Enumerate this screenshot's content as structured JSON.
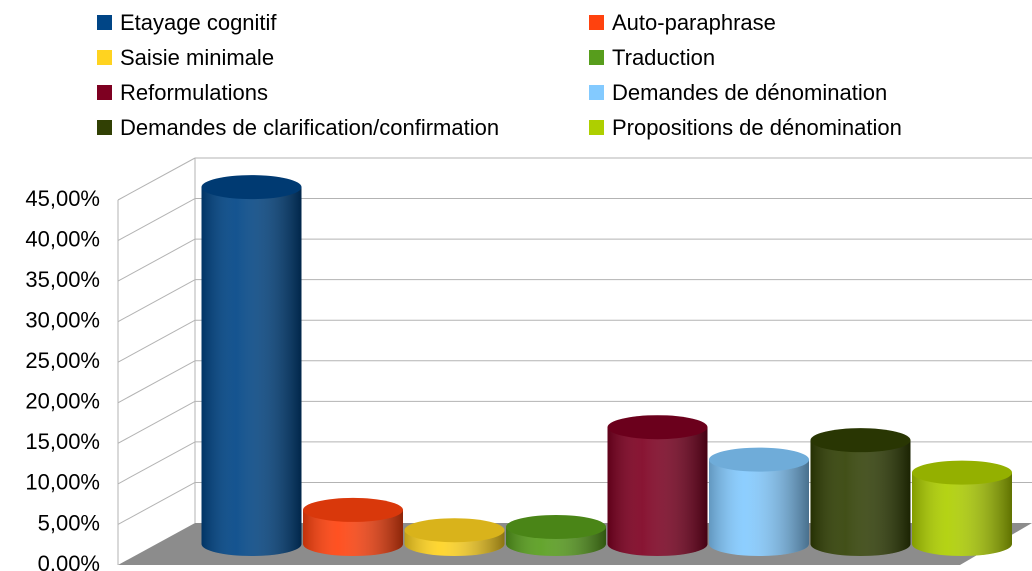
{
  "chart_data": {
    "type": "bar3d",
    "series": [
      {
        "name": "Etayage cognitif",
        "color": "#004586",
        "values": [
          44
        ]
      },
      {
        "name": "Auto-paraphrase",
        "color": "#ff420e",
        "values": [
          4.2
        ]
      },
      {
        "name": "Saisie minimale",
        "color": "#ffd320",
        "values": [
          1.7
        ]
      },
      {
        "name": "Traduction",
        "color": "#579d1c",
        "values": [
          2.1
        ]
      },
      {
        "name": "Reformulations",
        "color": "#7e0021",
        "values": [
          14.4
        ]
      },
      {
        "name": "Demandes de dénomination",
        "color": "#83caff",
        "values": [
          10.4
        ]
      },
      {
        "name": "Demandes de clarification/confirmation",
        "color": "#314004",
        "values": [
          12.8
        ]
      },
      {
        "name": "Propositions de dénomination",
        "color": "#aecf00",
        "values": [
          8.8
        ]
      }
    ],
    "ylim": [
      0,
      45
    ],
    "yticks": [
      {
        "value": 0,
        "label": "0.00%"
      },
      {
        "value": 5,
        "label": "5,00%"
      },
      {
        "value": 10,
        "label": "10,00%"
      },
      {
        "value": 15,
        "label": "15,00%"
      },
      {
        "value": 20,
        "label": "20,00%"
      },
      {
        "value": 25,
        "label": "25,00%"
      },
      {
        "value": 30,
        "label": "30,00%"
      },
      {
        "value": 35,
        "label": "35,00%"
      },
      {
        "value": 40,
        "label": "40,00%"
      },
      {
        "value": 45,
        "label": "45,00%"
      }
    ],
    "grid": true,
    "legend": "top"
  }
}
